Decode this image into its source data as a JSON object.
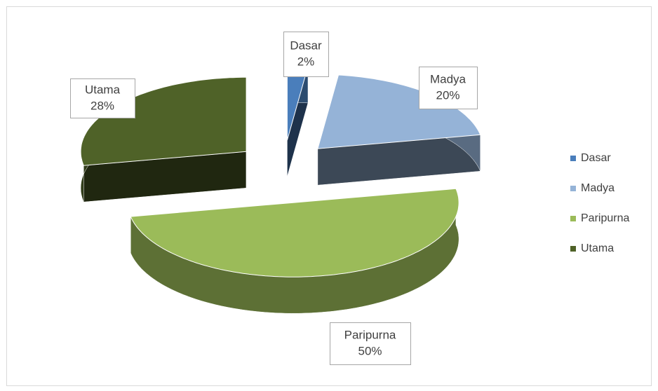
{
  "chart_data": {
    "type": "pie3d",
    "categories": [
      "Dasar",
      "Madya",
      "Paripurna",
      "Utama"
    ],
    "values": [
      2,
      20,
      50,
      28
    ],
    "value_labels": [
      "2%",
      "20%",
      "50%",
      "28%"
    ],
    "colors": [
      "#4a7ebb",
      "#95b3d7",
      "#9bbb59",
      "#4f6228"
    ],
    "legend": "right"
  }
}
